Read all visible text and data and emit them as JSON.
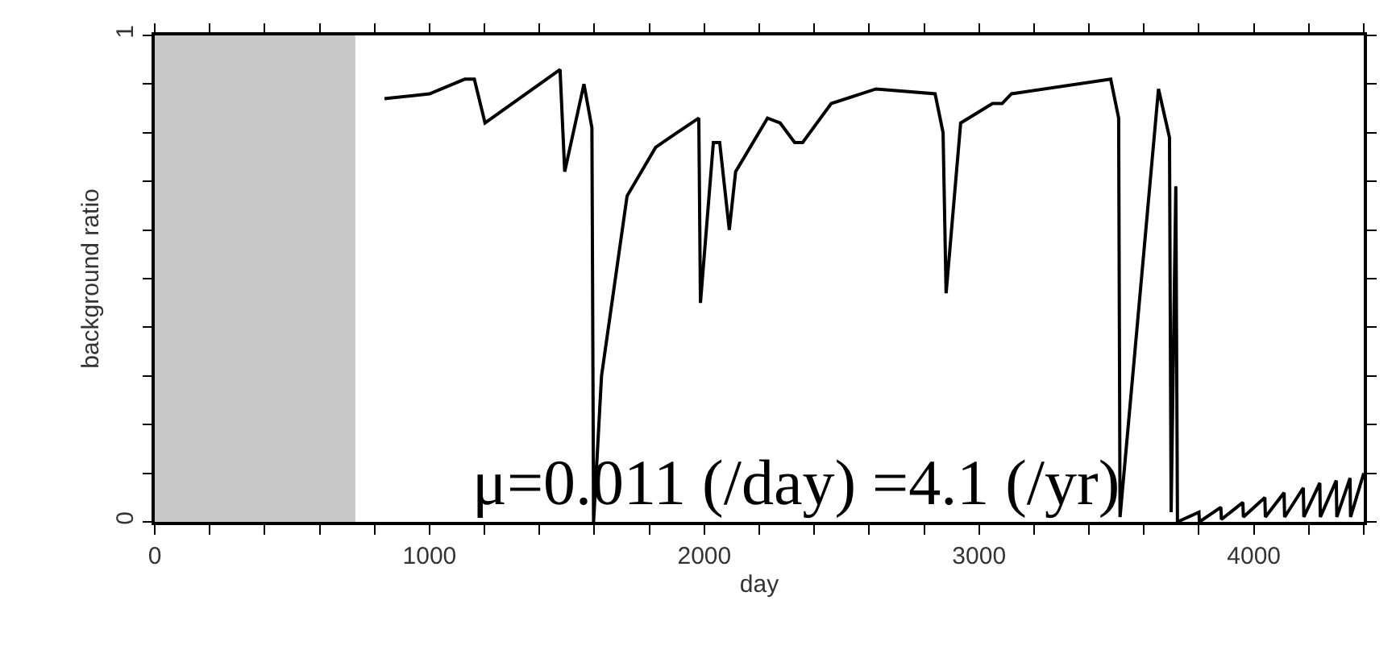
{
  "chart_data": {
    "type": "line",
    "xlabel": "day",
    "ylabel": "background ratio",
    "annotations": [
      "μ=0.011 (/day) =4.1 (/yr)"
    ],
    "xlim": [
      0,
      4400
    ],
    "ylim": [
      0,
      1
    ],
    "xticks": [
      0,
      {
        "value": 200,
        "label": null
      },
      {
        "value": 400,
        "label": null
      },
      {
        "value": 600,
        "label": null
      },
      {
        "value": 800,
        "label": null
      },
      1000,
      {
        "value": 1200,
        "label": null
      },
      {
        "value": 1400,
        "label": null
      },
      {
        "value": 1600,
        "label": null
      },
      {
        "value": 1800,
        "label": null
      },
      2000,
      {
        "value": 2200,
        "label": null
      },
      {
        "value": 2400,
        "label": null
      },
      {
        "value": 2600,
        "label": null
      },
      {
        "value": 2800,
        "label": null
      },
      3000,
      {
        "value": 3200,
        "label": null
      },
      {
        "value": 3400,
        "label": null
      },
      {
        "value": 3600,
        "label": null
      },
      {
        "value": 3800,
        "label": null
      },
      4000,
      {
        "value": 4200,
        "label": null
      },
      {
        "value": 4400,
        "label": null
      }
    ],
    "yticks": [
      0,
      {
        "value": 0.1,
        "label": null
      },
      {
        "value": 0.2,
        "label": null
      },
      {
        "value": 0.3,
        "label": null
      },
      {
        "value": 0.4,
        "label": null
      },
      {
        "value": 0.5,
        "label": null
      },
      {
        "value": 0.6,
        "label": null
      },
      {
        "value": 0.7,
        "label": null
      },
      {
        "value": 0.8,
        "label": null
      },
      {
        "value": 0.9,
        "label": null
      },
      1
    ],
    "grid": false,
    "marker": "none",
    "line_style": "solid",
    "bands": [
      {
        "axis": "x",
        "from": 0,
        "to": 730,
        "color": "#c8c8c8"
      }
    ],
    "series": [
      {
        "color": "#000000",
        "x": [
          836,
          1000,
          1128,
          1163,
          1202,
          1475,
          1492,
          1562,
          1591,
          1597,
          1626,
          1719,
          1823,
          1900,
          1980,
          1986,
          2033,
          2056,
          2091,
          2114,
          2230,
          2276,
          2329,
          2358,
          2462,
          2625,
          2840,
          2869,
          2880,
          2933,
          3049,
          3084,
          3118,
          3479,
          3508,
          3513,
          3653,
          3693,
          3699,
          3716,
          3722,
          3800,
          3802,
          3880,
          3882,
          3960,
          3962,
          4040,
          4042,
          4110,
          4112,
          4180,
          4182,
          4240,
          4242,
          4300,
          4302,
          4350,
          4352,
          4400
        ],
        "values": [
          0.87,
          0.88,
          0.91,
          0.91,
          0.82,
          0.93,
          0.72,
          0.9,
          0.81,
          0,
          0.3,
          0.67,
          0.77,
          0.8,
          0.83,
          0.45,
          0.78,
          0.78,
          0.6,
          0.72,
          0.83,
          0.82,
          0.78,
          0.78,
          0.86,
          0.89,
          0.88,
          0.8,
          0.47,
          0.82,
          0.86,
          0.86,
          0.88,
          0.91,
          0.83,
          0.01,
          0.89,
          0.79,
          0.02,
          0.69,
          0,
          0.02,
          0,
          0.03,
          0.005,
          0.04,
          0.01,
          0.05,
          0.01,
          0.06,
          0.01,
          0.07,
          0.01,
          0.08,
          0.01,
          0.085,
          0.01,
          0.09,
          0.01,
          0.1
        ]
      }
    ]
  }
}
